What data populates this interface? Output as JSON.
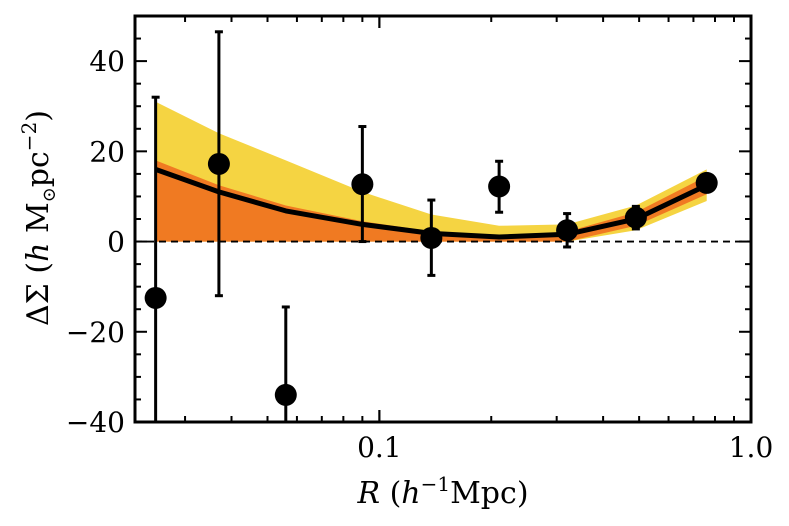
{
  "chart_data": {
    "type": "scatter",
    "title": "",
    "xscale": "log",
    "xlim": [
      0.022,
      1.0
    ],
    "ylim": [
      -40,
      50
    ],
    "x_ticks": [
      {
        "value": 0.1,
        "label": "0.1"
      },
      {
        "value": 1.0,
        "label": "1.0"
      }
    ],
    "y_ticks": [
      {
        "value": -40,
        "label": "−40"
      },
      {
        "value": -20,
        "label": "−20"
      },
      {
        "value": 0,
        "label": "0"
      },
      {
        "value": 20,
        "label": "20"
      },
      {
        "value": 40,
        "label": "40"
      }
    ],
    "xlabel": {
      "var": "R",
      "open": " (",
      "h": "h",
      "exp": "−1",
      "unit": "Mpc",
      "close": ")"
    },
    "ylabel": {
      "delta": "ΔΣ",
      "open": " (",
      "h": "h",
      "msun": " M",
      "sun_sub": "⊙",
      "pc": "pc",
      "exp": "−2",
      "close": ")"
    },
    "colors": {
      "outer_band": "#f5d442",
      "inner_band": "#f07a22",
      "model": "#000000",
      "points": "#000000",
      "zero_line": "#000000"
    },
    "series": [
      {
        "name": "data",
        "points": [
          {
            "x": 0.025,
            "y": -12.5,
            "ylow": -40,
            "yhigh": 32
          },
          {
            "x": 0.037,
            "y": 17.2,
            "ylow": -12,
            "yhigh": 46.5
          },
          {
            "x": 0.056,
            "y": -34,
            "ylow": -48,
            "yhigh": -14.5
          },
          {
            "x": 0.09,
            "y": 12.7,
            "ylow": 0,
            "yhigh": 25.5
          },
          {
            "x": 0.138,
            "y": 0.8,
            "ylow": -7.5,
            "yhigh": 9.2
          },
          {
            "x": 0.21,
            "y": 12.2,
            "ylow": 6.5,
            "yhigh": 17.8
          },
          {
            "x": 0.32,
            "y": 2.5,
            "ylow": -1.2,
            "yhigh": 6.2
          },
          {
            "x": 0.49,
            "y": 5.3,
            "ylow": 2.8,
            "yhigh": 7.8
          },
          {
            "x": 0.76,
            "y": 13.0,
            "ylow": 12.0,
            "yhigh": 14.0
          }
        ]
      },
      {
        "name": "model",
        "x": [
          0.025,
          0.037,
          0.056,
          0.09,
          0.138,
          0.21,
          0.32,
          0.49,
          0.76
        ],
        "y": [
          16,
          11,
          6.8,
          3.8,
          1.8,
          1.0,
          1.6,
          5.0,
          12.5
        ]
      },
      {
        "name": "outer_band",
        "x": [
          0.025,
          0.037,
          0.056,
          0.09,
          0.138,
          0.21,
          0.32,
          0.49,
          0.76
        ],
        "upper": [
          31,
          24,
          18,
          11,
          6,
          3.5,
          3.8,
          8,
          16
        ],
        "lower": [
          0,
          0,
          0,
          0,
          0,
          0,
          0,
          2.5,
          9
        ]
      },
      {
        "name": "inner_band",
        "x": [
          0.025,
          0.037,
          0.056,
          0.09,
          0.138,
          0.21,
          0.32,
          0.49,
          0.76
        ],
        "upper": [
          18,
          12.5,
          8,
          4.5,
          2.3,
          1.3,
          2.2,
          6.5,
          14.5
        ],
        "lower": [
          0,
          0,
          0,
          0,
          0,
          0,
          0,
          3.5,
          10.5
        ]
      }
    ]
  }
}
